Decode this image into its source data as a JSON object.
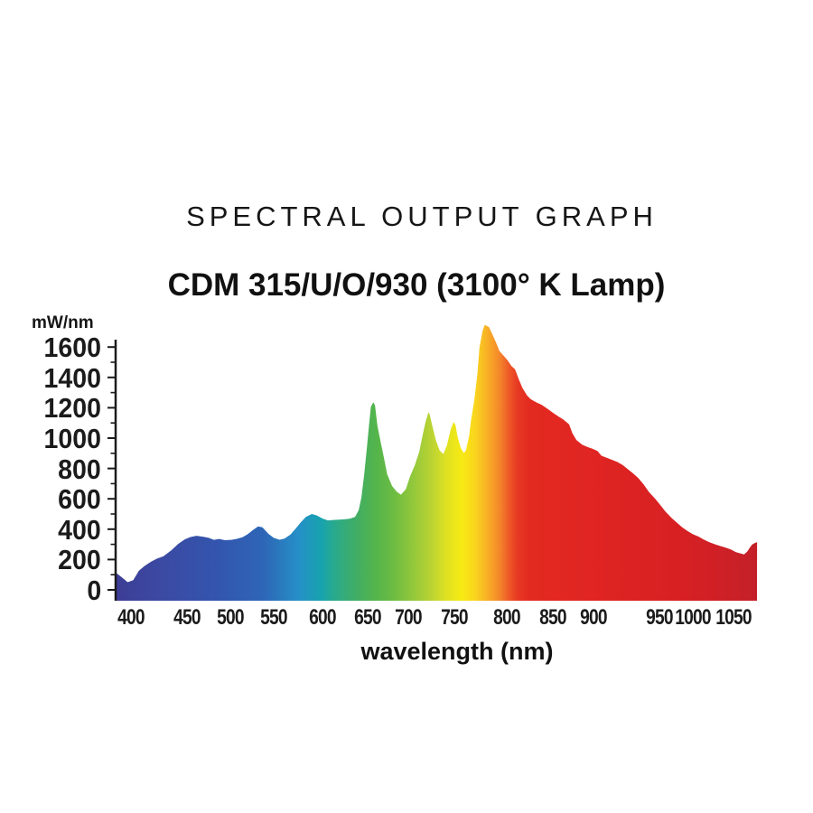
{
  "page": {
    "background": "#ffffff",
    "text_color": "#111111"
  },
  "header": {
    "title": "SPECTRAL OUTPUT GRAPH",
    "subtitle": "CDM 315/U/O/930 (3100° K Lamp)"
  },
  "chart_data": {
    "type": "area",
    "title": "SPECTRAL OUTPUT GRAPH",
    "subtitle": "CDM 315/U/O/930 (3100° K Lamp)",
    "xlabel": "wavelength (nm)",
    "ylabel": "mW/nm",
    "x_unit": "nm",
    "y_unit": "mW/nm",
    "xlim": [
      387,
      1079
    ],
    "ylim": [
      0,
      1750
    ],
    "x_ticks": [
      400,
      450,
      500,
      550,
      600,
      650,
      700,
      750,
      800,
      850,
      900,
      950,
      1000,
      1050
    ],
    "y_ticks": [
      0,
      200,
      400,
      600,
      800,
      1000,
      1200,
      1400,
      1600
    ],
    "y_minor_tick_step": 100,
    "grid": false,
    "legend": false,
    "axis_color": "#1b1b1b",
    "area_fill": "rainbow spectrum gradient left-to-right (indigo to deep red)",
    "gradient_stops": [
      {
        "pos": 0.0,
        "color": "#3d3d95"
      },
      {
        "pos": 0.072,
        "color": "#3b4aa3"
      },
      {
        "pos": 0.157,
        "color": "#3355ae"
      },
      {
        "pos": 0.23,
        "color": "#2e66b6"
      },
      {
        "pos": 0.285,
        "color": "#2590c7"
      },
      {
        "pos": 0.32,
        "color": "#17a3ae"
      },
      {
        "pos": 0.341,
        "color": "#2aaa8b"
      },
      {
        "pos": 0.377,
        "color": "#43ae62"
      },
      {
        "pos": 0.406,
        "color": "#54b54a"
      },
      {
        "pos": 0.432,
        "color": "#6cbc43"
      },
      {
        "pos": 0.461,
        "color": "#90c73c"
      },
      {
        "pos": 0.491,
        "color": "#b9d333"
      },
      {
        "pos": 0.516,
        "color": "#e0e222"
      },
      {
        "pos": 0.539,
        "color": "#f7ea13"
      },
      {
        "pos": 0.56,
        "color": "#f9d51e"
      },
      {
        "pos": 0.581,
        "color": "#f8ab27"
      },
      {
        "pos": 0.598,
        "color": "#f4872a"
      },
      {
        "pos": 0.612,
        "color": "#ee5a28"
      },
      {
        "pos": 0.626,
        "color": "#e73a23"
      },
      {
        "pos": 0.645,
        "color": "#e32a20"
      },
      {
        "pos": 0.735,
        "color": "#e02522"
      },
      {
        "pos": 0.876,
        "color": "#d82023"
      },
      {
        "pos": 0.949,
        "color": "#cd2026"
      },
      {
        "pos": 1.0,
        "color": "#c42029"
      }
    ],
    "points": [
      [
        387,
        170
      ],
      [
        391,
        148
      ],
      [
        397,
        112
      ],
      [
        402,
        125
      ],
      [
        407,
        185
      ],
      [
        412,
        215
      ],
      [
        418,
        243
      ],
      [
        423,
        262
      ],
      [
        429,
        278
      ],
      [
        436,
        315
      ],
      [
        442,
        355
      ],
      [
        448,
        385
      ],
      [
        454,
        400
      ],
      [
        461,
        408
      ],
      [
        469,
        402
      ],
      [
        475,
        395
      ],
      [
        481,
        382
      ],
      [
        487,
        388
      ],
      [
        494,
        380
      ],
      [
        501,
        382
      ],
      [
        507,
        388
      ],
      [
        514,
        398
      ],
      [
        520,
        418
      ],
      [
        526,
        445
      ],
      [
        532,
        468
      ],
      [
        537,
        462
      ],
      [
        544,
        420
      ],
      [
        550,
        395
      ],
      [
        556,
        383
      ],
      [
        561,
        390
      ],
      [
        567,
        415
      ],
      [
        572,
        450
      ],
      [
        578,
        495
      ],
      [
        583,
        528
      ],
      [
        589,
        547
      ],
      [
        594,
        538
      ],
      [
        600,
        518
      ],
      [
        606,
        506
      ],
      [
        612,
        509
      ],
      [
        618,
        511
      ],
      [
        624,
        513
      ],
      [
        630,
        516
      ],
      [
        636,
        528
      ],
      [
        640,
        570
      ],
      [
        643,
        650
      ],
      [
        646,
        790
      ],
      [
        649,
        960
      ],
      [
        652,
        1130
      ],
      [
        654,
        1230
      ],
      [
        657,
        1258
      ],
      [
        659,
        1240
      ],
      [
        662,
        1110
      ],
      [
        666,
        1005
      ],
      [
        670,
        905
      ],
      [
        674,
        800
      ],
      [
        680,
        725
      ],
      [
        686,
        688
      ],
      [
        691,
        670
      ],
      [
        697,
        705
      ],
      [
        702,
        788
      ],
      [
        707,
        855
      ],
      [
        712,
        945
      ],
      [
        716,
        1060
      ],
      [
        719,
        1140
      ],
      [
        722,
        1195
      ],
      [
        723,
        1185
      ],
      [
        726,
        1110
      ],
      [
        730,
        1015
      ],
      [
        734,
        952
      ],
      [
        738,
        928
      ],
      [
        742,
        985
      ],
      [
        746,
        1085
      ],
      [
        749,
        1132
      ],
      [
        751,
        1115
      ],
      [
        753,
        1040
      ],
      [
        756,
        968
      ],
      [
        759,
        935
      ],
      [
        761,
        952
      ],
      [
        764,
        1040
      ],
      [
        766,
        1150
      ],
      [
        769,
        1270
      ],
      [
        772,
        1440
      ],
      [
        774,
        1610
      ],
      [
        777,
        1715
      ],
      [
        779,
        1752
      ],
      [
        783,
        1738
      ],
      [
        786,
        1695
      ],
      [
        790,
        1635
      ],
      [
        793,
        1585
      ],
      [
        797,
        1555
      ],
      [
        801,
        1525
      ],
      [
        805,
        1490
      ],
      [
        809,
        1468
      ],
      [
        813,
        1405
      ],
      [
        817,
        1350
      ],
      [
        822,
        1302
      ],
      [
        826,
        1278
      ],
      [
        832,
        1258
      ],
      [
        838,
        1242
      ],
      [
        844,
        1218
      ],
      [
        850,
        1192
      ],
      [
        857,
        1168
      ],
      [
        863,
        1148
      ],
      [
        870,
        1118
      ],
      [
        874,
        1062
      ],
      [
        879,
        1018
      ],
      [
        886,
        988
      ],
      [
        892,
        975
      ],
      [
        899,
        962
      ],
      [
        903,
        948
      ],
      [
        906,
        918
      ],
      [
        910,
        905
      ],
      [
        914,
        892
      ],
      [
        918,
        878
      ],
      [
        922,
        860
      ],
      [
        926,
        832
      ],
      [
        930,
        806
      ],
      [
        934,
        775
      ],
      [
        938,
        735
      ],
      [
        942,
        688
      ],
      [
        947,
        642
      ],
      [
        951,
        606
      ],
      [
        959,
        562
      ],
      [
        968,
        522
      ],
      [
        976,
        492
      ],
      [
        984,
        462
      ],
      [
        992,
        438
      ],
      [
        1000,
        418
      ],
      [
        1007,
        403
      ],
      [
        1013,
        385
      ],
      [
        1020,
        368
      ],
      [
        1027,
        354
      ],
      [
        1033,
        344
      ],
      [
        1040,
        333
      ],
      [
        1047,
        320
      ],
      [
        1053,
        304
      ],
      [
        1059,
        295
      ],
      [
        1063,
        289
      ],
      [
        1067,
        308
      ],
      [
        1070,
        332
      ],
      [
        1073,
        352
      ],
      [
        1077,
        364
      ],
      [
        1079,
        367
      ]
    ]
  }
}
